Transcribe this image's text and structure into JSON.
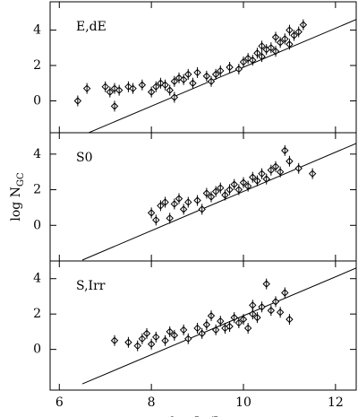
{
  "chart_data": [
    {
      "type": "scatter",
      "panel_label": "E,dE",
      "xlim": [
        5.8,
        12.45
      ],
      "ylim": [
        -1.8,
        5.6
      ],
      "xticks": [
        6,
        8,
        10,
        12
      ],
      "yticks": [
        0,
        2,
        4
      ],
      "color": "#000000",
      "x": [
        6.4,
        6.6,
        7.0,
        7.1,
        7.2,
        7.3,
        7.5,
        7.6,
        7.8,
        8.0,
        8.1,
        8.2,
        8.3,
        8.4,
        8.5,
        8.6,
        8.7,
        8.8,
        8.9,
        9.0,
        9.2,
        9.4,
        9.5,
        9.7,
        9.9,
        10.0,
        10.1,
        10.2,
        10.3,
        10.4,
        10.5,
        10.6,
        10.7,
        10.8,
        10.9,
        11.0,
        11.1,
        11.2,
        11.3,
        11.0,
        10.7,
        10.4,
        7.2,
        8.5,
        9.3
      ],
      "values": [
        0.0,
        0.7,
        0.8,
        0.5,
        0.7,
        0.6,
        0.8,
        0.7,
        0.9,
        0.5,
        0.8,
        1.0,
        0.9,
        0.6,
        1.1,
        1.3,
        1.2,
        1.5,
        1.0,
        1.6,
        1.4,
        1.5,
        1.7,
        1.9,
        1.8,
        2.2,
        2.4,
        2.3,
        2.7,
        2.5,
        2.9,
        3.0,
        2.8,
        3.3,
        3.5,
        3.2,
        3.7,
        3.9,
        4.3,
        4.0,
        3.6,
        3.1,
        -0.3,
        0.2,
        1.1
      ],
      "fit_line": {
        "x": [
          6.5,
          12.45
        ],
        "y": [
          -1.95,
          4.6
        ]
      }
    },
    {
      "type": "scatter",
      "panel_label": "S0",
      "xlim": [
        5.8,
        12.45
      ],
      "ylim": [
        -2.0,
        5.2
      ],
      "xticks": [
        6,
        8,
        10,
        12
      ],
      "yticks": [
        0,
        2,
        4
      ],
      "color": "#000000",
      "ylabel": [
        {
          "t": "log N"
        },
        {
          "t": "GC",
          "sub": true
        }
      ],
      "x": [
        8.0,
        8.1,
        8.2,
        8.3,
        8.4,
        8.5,
        8.6,
        8.7,
        8.8,
        9.0,
        9.1,
        9.2,
        9.3,
        9.4,
        9.5,
        9.6,
        9.7,
        9.8,
        9.9,
        10.0,
        10.1,
        10.2,
        10.3,
        10.4,
        10.5,
        10.6,
        10.7,
        10.8,
        10.9,
        11.0,
        11.2,
        11.5
      ],
      "values": [
        0.7,
        0.3,
        1.1,
        1.3,
        0.4,
        1.2,
        1.5,
        0.9,
        1.3,
        1.4,
        0.9,
        1.8,
        1.6,
        1.9,
        2.1,
        1.7,
        2.0,
        2.3,
        2.0,
        2.4,
        2.2,
        2.7,
        2.5,
        2.9,
        2.6,
        3.1,
        3.3,
        3.0,
        4.2,
        3.6,
        3.2,
        2.9
      ],
      "fit_line": {
        "x": [
          6.5,
          12.45
        ],
        "y": [
          -1.95,
          4.6
        ]
      }
    },
    {
      "type": "scatter",
      "panel_label": "S,Irr",
      "xlim": [
        5.8,
        12.45
      ],
      "ylim": [
        -2.3,
        5.0
      ],
      "xticks": [
        6,
        8,
        10,
        12
      ],
      "yticks": [
        0,
        2,
        4
      ],
      "color": "#000000",
      "xlabel": [
        {
          "t": "log L"
        },
        {
          "t": "V",
          "sub": true
        },
        {
          "t": "/L"
        },
        {
          "t": "V⊙",
          "sub": true
        }
      ],
      "x": [
        7.2,
        7.5,
        7.7,
        7.8,
        7.9,
        8.0,
        8.1,
        8.3,
        8.4,
        8.5,
        8.7,
        8.8,
        9.0,
        9.1,
        9.2,
        9.4,
        9.5,
        9.6,
        9.7,
        9.8,
        9.9,
        10.0,
        10.1,
        10.2,
        10.3,
        10.4,
        10.5,
        10.6,
        10.7,
        10.8,
        10.9,
        11.0,
        10.2,
        9.3
      ],
      "values": [
        0.5,
        0.4,
        0.2,
        0.6,
        0.9,
        0.3,
        0.7,
        0.5,
        1.0,
        0.8,
        1.1,
        0.6,
        1.2,
        0.9,
        1.4,
        1.1,
        1.6,
        1.2,
        1.3,
        1.8,
        1.5,
        1.7,
        1.2,
        2.0,
        1.8,
        2.4,
        3.7,
        2.2,
        2.7,
        2.1,
        3.2,
        1.7,
        2.5,
        1.9
      ],
      "fit_line": {
        "x": [
          6.5,
          12.45
        ],
        "y": [
          -1.95,
          4.6
        ]
      }
    }
  ]
}
